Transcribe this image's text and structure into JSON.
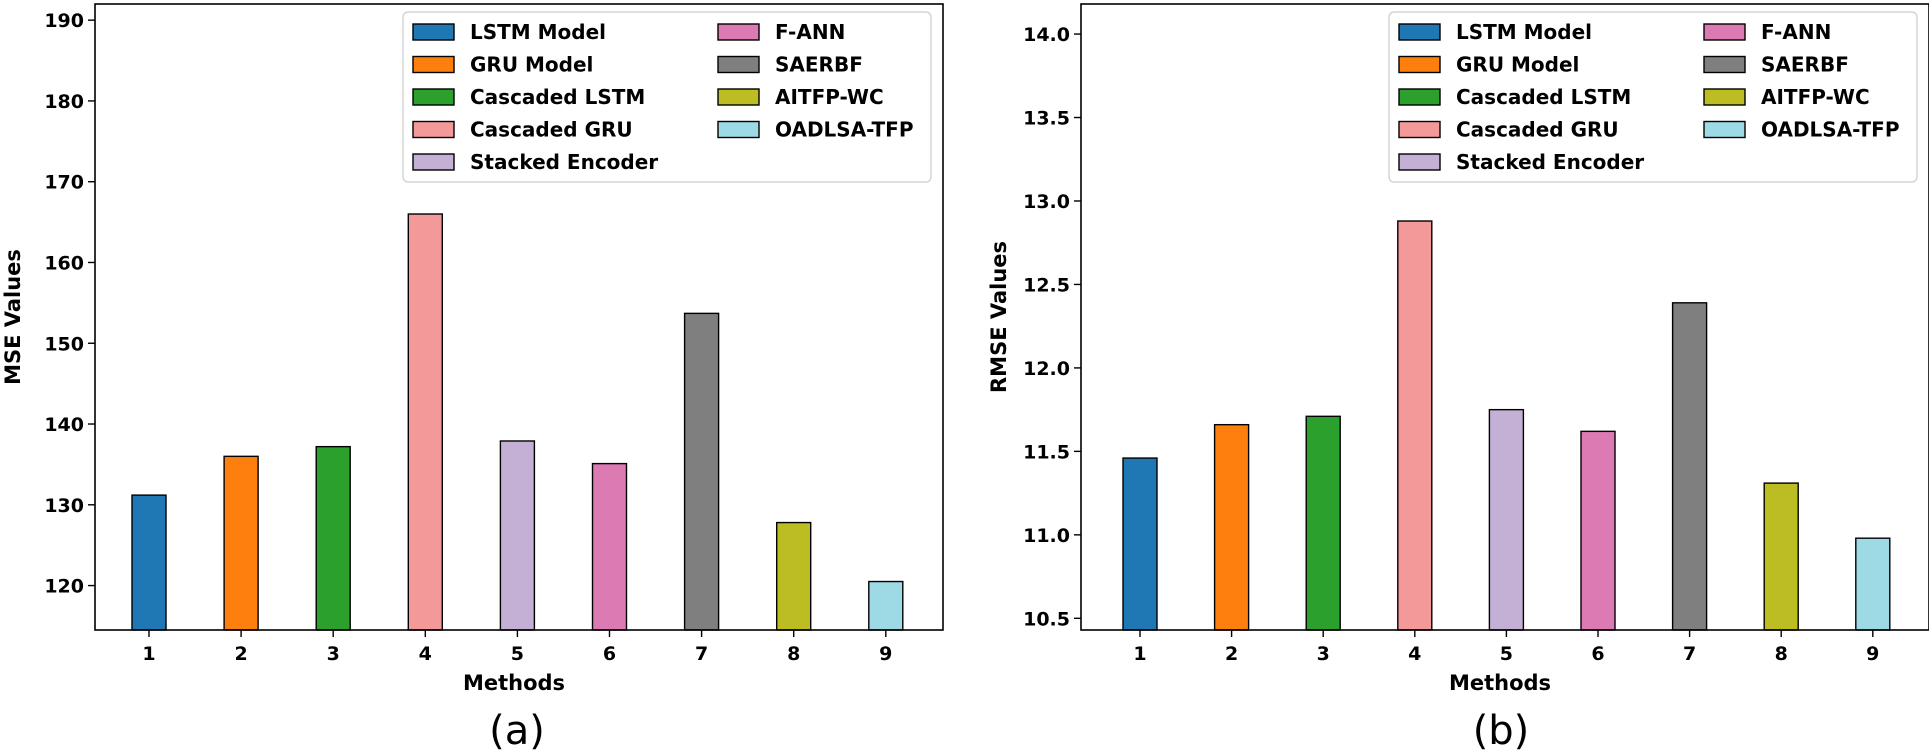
{
  "colors": [
    "#1f77b4",
    "#ff7f0e",
    "#2ca02c",
    "#f4999a",
    "#c5b0d5",
    "#dc7ab3",
    "#7f7f7f",
    "#bcbd22",
    "#9edae5"
  ],
  "chart_data": [
    {
      "type": "bar",
      "caption": "(a)",
      "xlabel": "Methods",
      "ylabel": "MSE Values",
      "categories": [
        "1",
        "2",
        "3",
        "4",
        "5",
        "6",
        "7",
        "8",
        "9"
      ],
      "values": [
        131.2,
        136.0,
        137.2,
        166.0,
        137.9,
        135.1,
        153.7,
        127.8,
        120.5
      ],
      "ylim": [
        114.5,
        192
      ],
      "yticks": [
        120,
        130,
        140,
        150,
        160,
        170,
        180,
        190
      ],
      "ytick_labels": [
        "120",
        "130",
        "140",
        "150",
        "160",
        "170",
        "180",
        "190"
      ],
      "legend": [
        "LSTM Model",
        "GRU Model",
        "Cascaded LSTM",
        "Cascaded GRU",
        "Stacked Encoder",
        "F-ANN",
        "SAERBF",
        "AITFP-WC",
        "OADLSA-TFP"
      ],
      "legend_position": "top-right"
    },
    {
      "type": "bar",
      "caption": "(b)",
      "xlabel": "Methods",
      "ylabel": "RMSE Values",
      "categories": [
        "1",
        "2",
        "3",
        "4",
        "5",
        "6",
        "7",
        "8",
        "9"
      ],
      "values": [
        11.46,
        11.66,
        11.71,
        12.88,
        11.75,
        11.62,
        12.39,
        11.31,
        10.98
      ],
      "ylim": [
        10.43,
        14.18
      ],
      "yticks": [
        10.5,
        11.0,
        11.5,
        12.0,
        12.5,
        13.0,
        13.5,
        14.0
      ],
      "ytick_labels": [
        "10.5",
        "11.0",
        "11.5",
        "12.0",
        "12.5",
        "13.0",
        "13.5",
        "14.0"
      ],
      "legend": [
        "LSTM Model",
        "GRU Model",
        "Cascaded LSTM",
        "Cascaded GRU",
        "Stacked Encoder",
        "F-ANN",
        "SAERBF",
        "AITFP-WC",
        "OADLSA-TFP"
      ],
      "legend_position": "top-right"
    }
  ]
}
